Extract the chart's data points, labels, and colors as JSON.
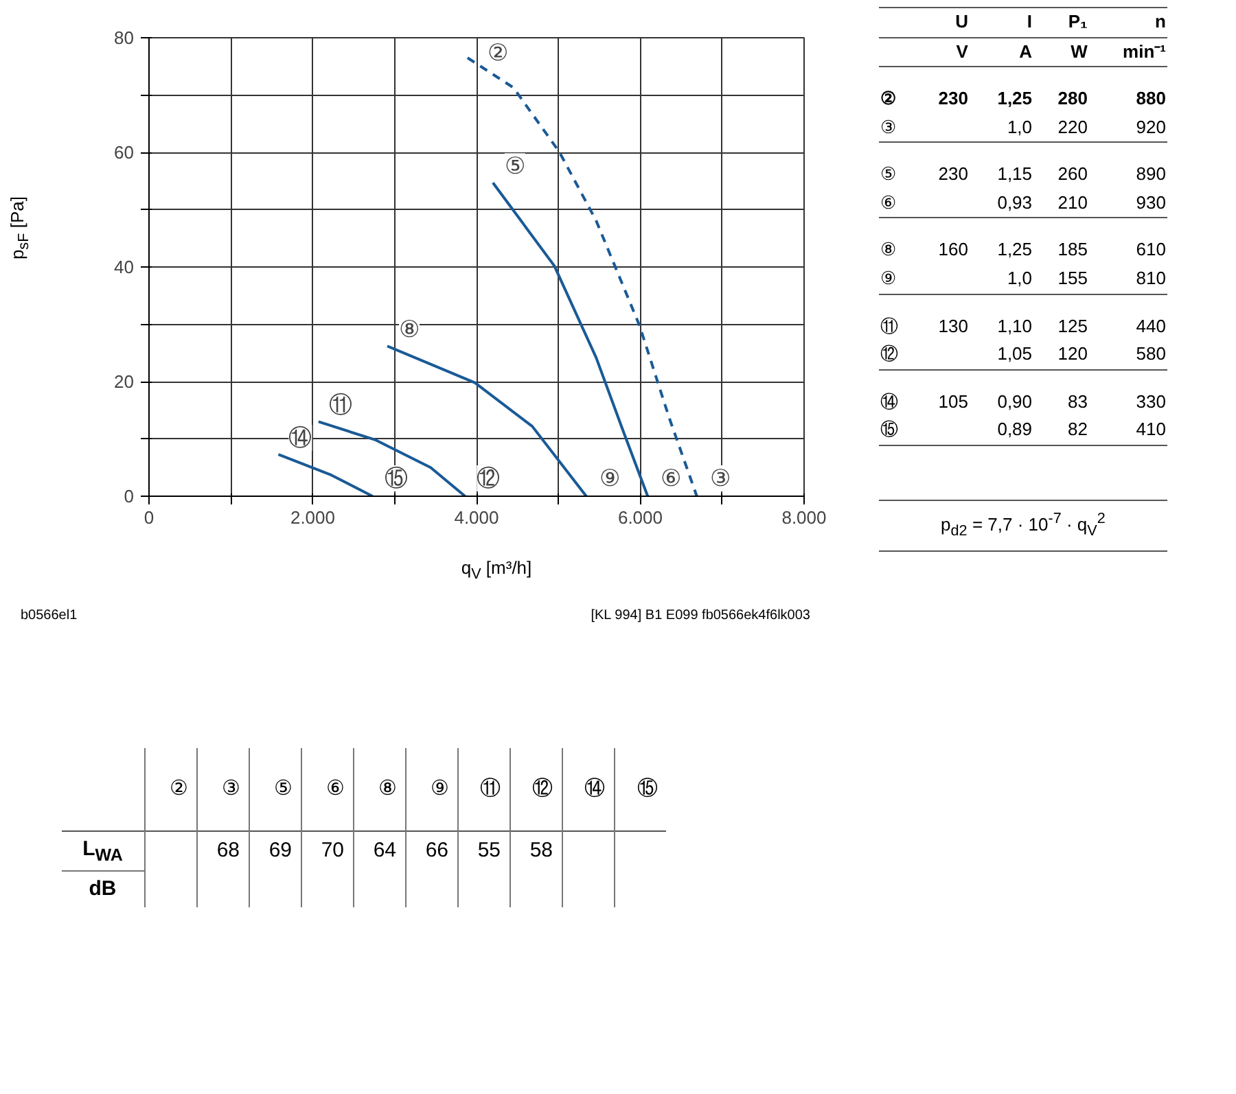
{
  "chart_data": {
    "type": "line",
    "xlabel": "q$_{V}$ [m³/h]",
    "ylabel": "p$_{sF}$ [Pa]",
    "xlim": [
      0,
      8000
    ],
    "ylim": [
      0,
      80
    ],
    "xticks": [
      0,
      {
        "value": 1000,
        "label": null
      },
      {
        "value": 2000,
        "label": "2.000"
      },
      {
        "value": 3000,
        "label": null
      },
      {
        "value": 4000,
        "label": "4.000"
      },
      {
        "value": 5000,
        "label": null
      },
      {
        "value": 6000,
        "label": "6.000"
      },
      {
        "value": 7000,
        "label": null
      },
      {
        "value": 8000,
        "label": "8.000"
      }
    ],
    "yticks": [
      0,
      {
        "value": 10,
        "label": null
      },
      20,
      {
        "value": 30,
        "label": null
      },
      40,
      {
        "value": 50,
        "label": null
      },
      60,
      {
        "value": 70,
        "label": null
      },
      80
    ],
    "grid": true,
    "marker": "none",
    "series": [
      {
        "color": "#1a5a96",
        "line_style": "dashed",
        "x": [
          3890,
          4450,
          5010,
          5460,
          5990,
          6350,
          6690
        ],
        "values": [
          76.5,
          71.3,
          60.1,
          48.1,
          29.8,
          13.8,
          0
        ]
      },
      {
        "color": "#1a5a96",
        "line_style": "solid",
        "x": [
          4200,
          4950,
          5460,
          5790,
          6090
        ],
        "values": [
          54.7,
          40.2,
          24.2,
          11.4,
          0
        ]
      },
      {
        "color": "#1a5a96",
        "line_style": "solid",
        "x": [
          2910,
          3980,
          4680,
          5340
        ],
        "values": [
          26.2,
          19.8,
          12.2,
          0
        ]
      },
      {
        "color": "#1a5a96",
        "line_style": "solid",
        "x": [
          2070,
          2770,
          3440,
          3860
        ],
        "values": [
          13.0,
          9.8,
          5.0,
          0
        ]
      },
      {
        "color": "#1a5a96",
        "line_style": "solid",
        "x": [
          1580,
          2210,
          2730
        ],
        "values": [
          7.3,
          3.8,
          0
        ]
      }
    ],
    "annotations": [
      {
        "text": "②",
        "x": 3890,
        "y": 76.5
      },
      {
        "text": "③",
        "x": 6690,
        "y": 0
      },
      {
        "text": "⑤",
        "x": 4200,
        "y": 54.7
      },
      {
        "text": "⑥",
        "x": 6090,
        "y": 0
      },
      {
        "text": "⑧",
        "x": 2910,
        "y": 26.2
      },
      {
        "text": "⑨",
        "x": 5340,
        "y": 0
      },
      {
        "text": "⑪",
        "x": 2070,
        "y": 13.0
      },
      {
        "text": "⑫",
        "x": 3860,
        "y": 0
      },
      {
        "text": "⑭",
        "x": 1580,
        "y": 7.3
      },
      {
        "text": "⑮",
        "x": 2730,
        "y": 0
      },
      "b0566el1",
      "[KL 994] B1 E099 fb0566ek4f6lk003",
      "\tU\tI\tP₁\tn",
      "\tV\tA\tW\tmin⁻¹",
      "②\t230\t1,25\t280\t880",
      "③\t\t1,0\t220\t920",
      "⑤\t230\t1,15\t260\t890",
      "⑥\t\t0,93\t210\t930",
      "⑧\t160\t1,25\t185\t610",
      "⑨\t\t1,0\t155\t810",
      "⑪\t130\t1,10\t125\t440",
      "⑫\t\t1,05\t120\t580",
      "⑭\t105\t0,90\t83\t330",
      "⑮\t\t0,89\t82\t410",
      "p$_{d2}$ = 7,7 · 10$^{-7}$ · q$_{V}$$^{2}$",
      "\t②\t③\t⑤\t⑥\t⑧\t⑨\t⑪\t⑫\t⑭\t⑮",
      "L$_{WA}$\t\t68\t69\t70\t64\t66\t55\t58\t\t",
      "dB\t\t\t\t\t\t\t\t\t\t"
    ]
  }
}
